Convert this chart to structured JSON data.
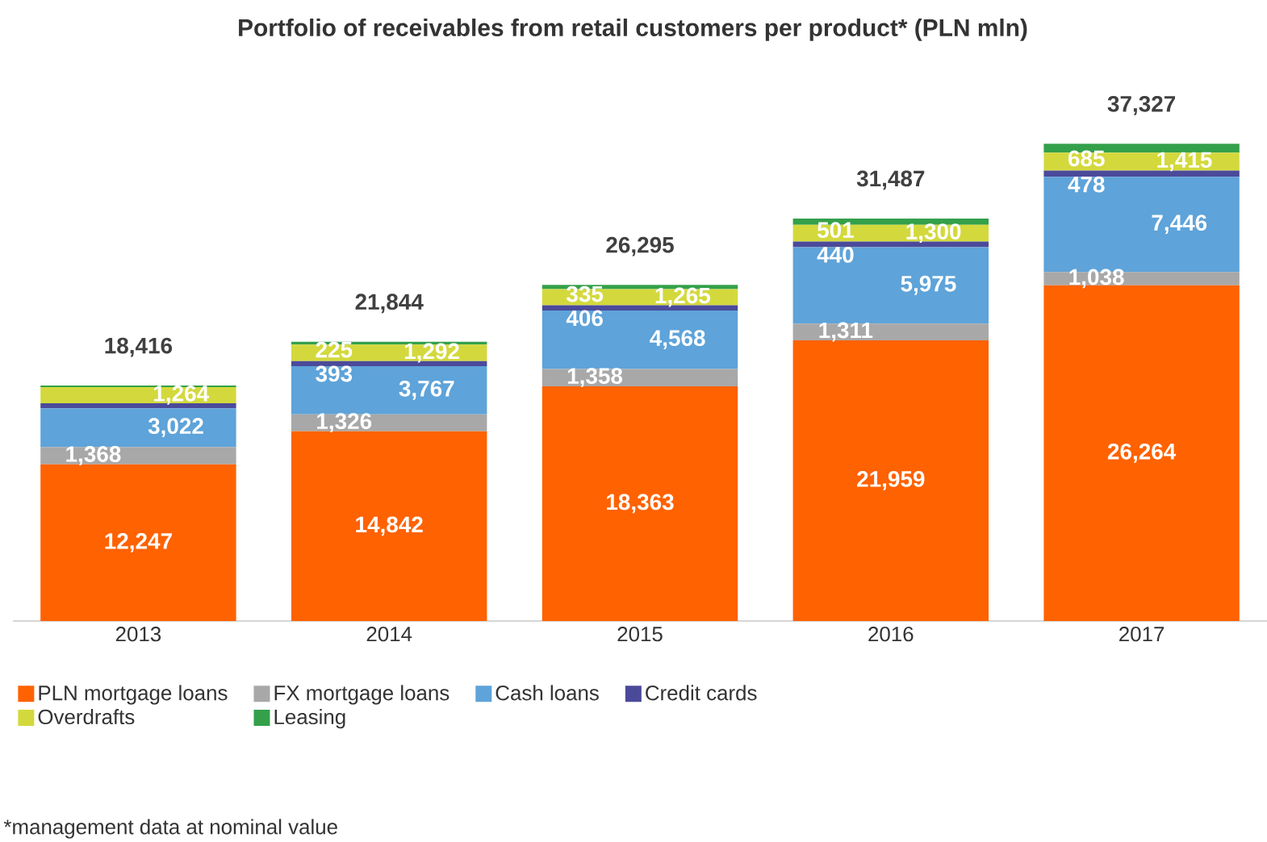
{
  "chart_data": {
    "type": "bar",
    "stacked": true,
    "title": "Portfolio of receivables from retail customers per product* (PLN mln)",
    "categories": [
      "2013",
      "2014",
      "2015",
      "2016",
      "2017"
    ],
    "series": [
      {
        "name": "PLN mortgage loans",
        "color": "#ff6200",
        "values": [
          12247,
          14842,
          18363,
          21959,
          26264
        ],
        "value_labels": [
          "12,247",
          "14,842",
          "18,363",
          "21,959",
          "26,264"
        ]
      },
      {
        "name": "FX mortgage loans",
        "color": "#a8a8a8",
        "values": [
          1368,
          1326,
          1358,
          1311,
          1038
        ],
        "value_labels": [
          "1,368",
          "1,326",
          "1,358",
          "1,311",
          "1,038"
        ]
      },
      {
        "name": "Cash loans",
        "color": "#5ea3d9",
        "values": [
          3022,
          3767,
          4568,
          5975,
          7446
        ],
        "value_labels": [
          "3,022",
          "3,767",
          "4,568",
          "5,975",
          "7,446"
        ]
      },
      {
        "name": "Credit cards",
        "color": "#4b4a9a",
        "values": [
          400,
          393,
          406,
          440,
          478
        ],
        "value_labels": [
          null,
          "393",
          "406",
          "440",
          "478"
        ]
      },
      {
        "name": "Overdrafts",
        "color": "#d3d93c",
        "values": [
          1264,
          1292,
          1265,
          1300,
          1415
        ],
        "value_labels": [
          "1,264",
          "1,292",
          "1,265",
          "1,300",
          "1,415"
        ]
      },
      {
        "name": "Leasing",
        "color": "#34a04a",
        "values": [
          115,
          225,
          335,
          501,
          685
        ],
        "value_labels": [
          null,
          "225",
          "335",
          "501",
          "685"
        ]
      }
    ],
    "totals": [
      "18,416",
      "21,844",
      "26,295",
      "31,487",
      "37,327"
    ],
    "legend": "bottom",
    "annotations": [
      "*management data at nominal value"
    ]
  }
}
